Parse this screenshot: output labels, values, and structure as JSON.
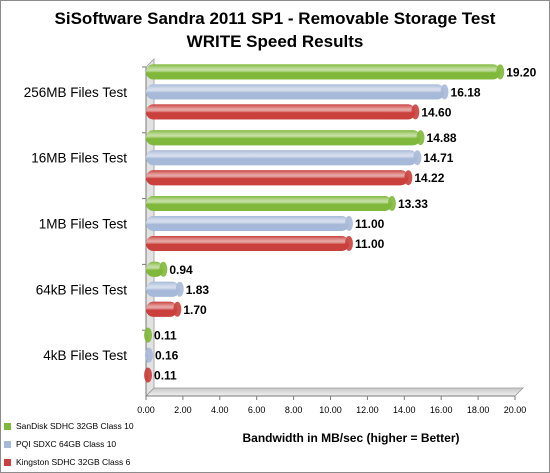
{
  "chart_data": {
    "type": "bar",
    "orientation": "horizontal",
    "title": "SiSoftware Sandra 2011 SP1 - Removable Storage Test",
    "subtitle": "WRITE Speed Results",
    "xlabel": "Bandwidth in MB/sec (higher = Better)",
    "ylabel": "",
    "xlim": [
      0,
      20
    ],
    "x_ticks": [
      "0.00",
      "2.00",
      "4.00",
      "6.00",
      "8.00",
      "10.00",
      "12.00",
      "14.00",
      "16.00",
      "18.00",
      "20.00"
    ],
    "grid": false,
    "legend_position": "bottom-left",
    "categories": [
      "256MB Files Test",
      "16MB Files Test",
      "1MB Files Test",
      "64kB Files Test",
      "4kB Files Test"
    ],
    "series": [
      {
        "name": "SanDisk SDHC 32GB Class 10",
        "color": "#7fb83a",
        "values": [
          19.2,
          14.88,
          13.33,
          0.94,
          0.11
        ]
      },
      {
        "name": "PQI SDXC 64GB Class 10",
        "color": "#a7b9d8",
        "values": [
          16.18,
          14.71,
          11.0,
          1.83,
          0.16
        ]
      },
      {
        "name": "Kingston SDHC 32GB Class 6",
        "color": "#c9403c",
        "values": [
          14.6,
          14.22,
          11.0,
          1.7,
          0.11
        ]
      }
    ],
    "value_labels": [
      [
        "19.20",
        "14.88",
        "13.33",
        "0.94",
        "0.11"
      ],
      [
        "16.18",
        "14.71",
        "11.00",
        "1.83",
        "0.16"
      ],
      [
        "14.60",
        "14.22",
        "11.00",
        "1.70",
        "0.11"
      ]
    ]
  }
}
